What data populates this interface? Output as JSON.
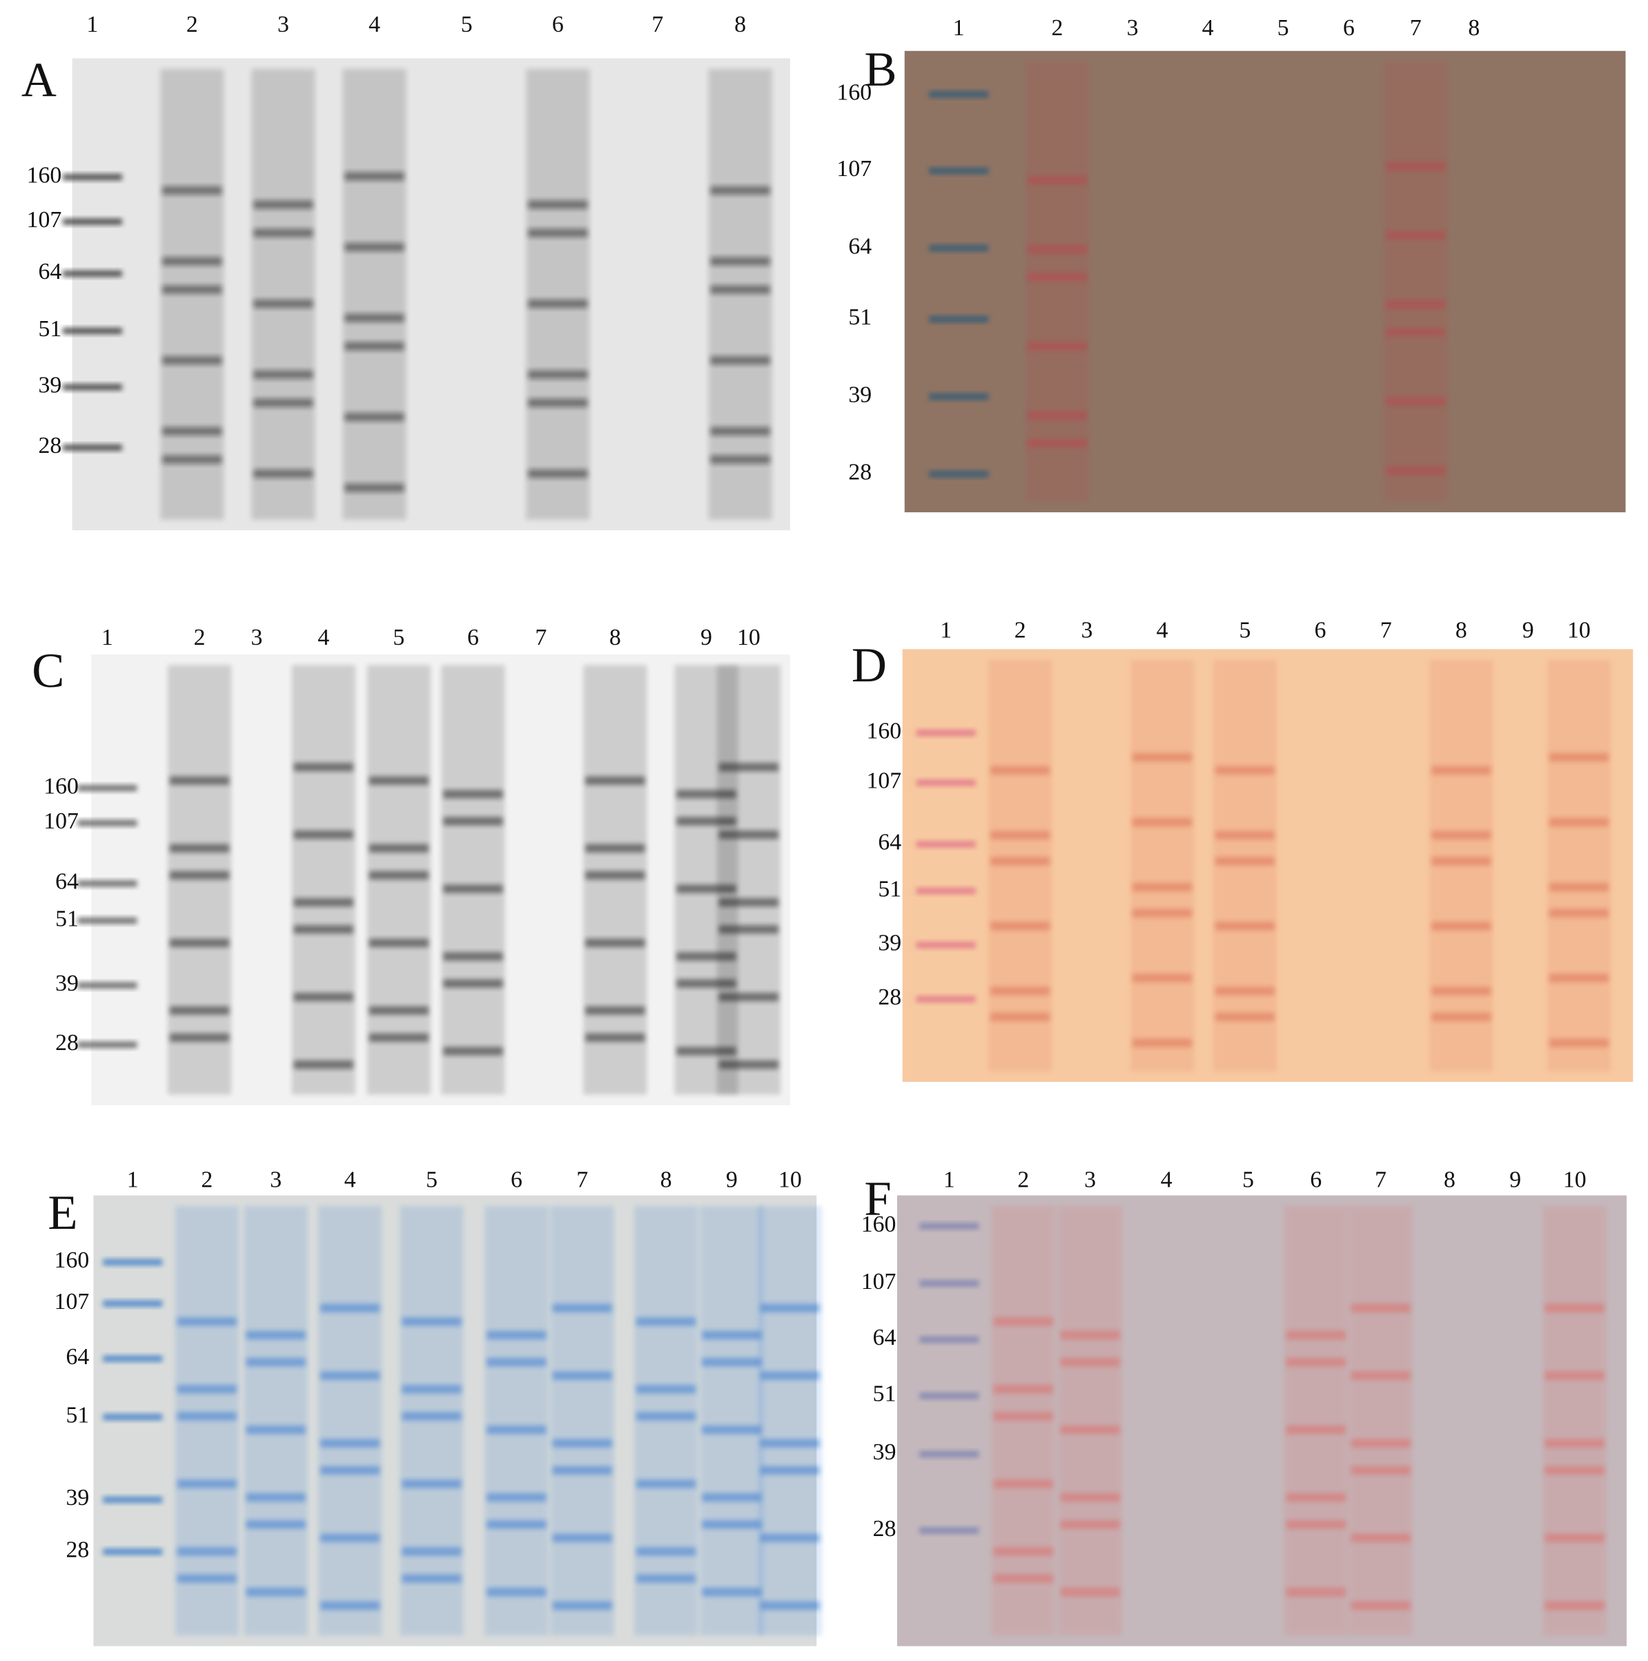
{
  "panels": [
    {
      "letter": "A",
      "lanes": [
        "1",
        "2",
        "3",
        "4",
        "5",
        "6",
        "7",
        "8"
      ],
      "markers": [
        "160",
        "107",
        "64",
        "51",
        "39",
        "28"
      ]
    },
    {
      "letter": "B",
      "lanes": [
        "1",
        "2",
        "3",
        "4",
        "5",
        "6",
        "7",
        "8"
      ],
      "markers": [
        "160",
        "107",
        "64",
        "51",
        "39",
        "28"
      ]
    },
    {
      "letter": "C",
      "lanes": [
        "1",
        "2",
        "3",
        "4",
        "5",
        "6",
        "7",
        "8",
        "9",
        "10"
      ],
      "markers": [
        "160",
        "107",
        "64",
        "51",
        "39",
        "28"
      ]
    },
    {
      "letter": "D",
      "lanes": [
        "1",
        "2",
        "3",
        "4",
        "5",
        "6",
        "7",
        "8",
        "9",
        "10"
      ],
      "markers": [
        "160",
        "107",
        "64",
        "51",
        "39",
        "28"
      ]
    },
    {
      "letter": "E",
      "lanes": [
        "1",
        "2",
        "3",
        "4",
        "5",
        "6",
        "7",
        "8",
        "9",
        "10"
      ],
      "markers": [
        "160",
        "107",
        "64",
        "51",
        "39",
        "28"
      ]
    },
    {
      "letter": "F",
      "lanes": [
        "1",
        "2",
        "3",
        "4",
        "5",
        "6",
        "7",
        "8",
        "9",
        "10"
      ],
      "markers": [
        "160",
        "107",
        "64",
        "51",
        "39",
        "28"
      ]
    }
  ]
}
